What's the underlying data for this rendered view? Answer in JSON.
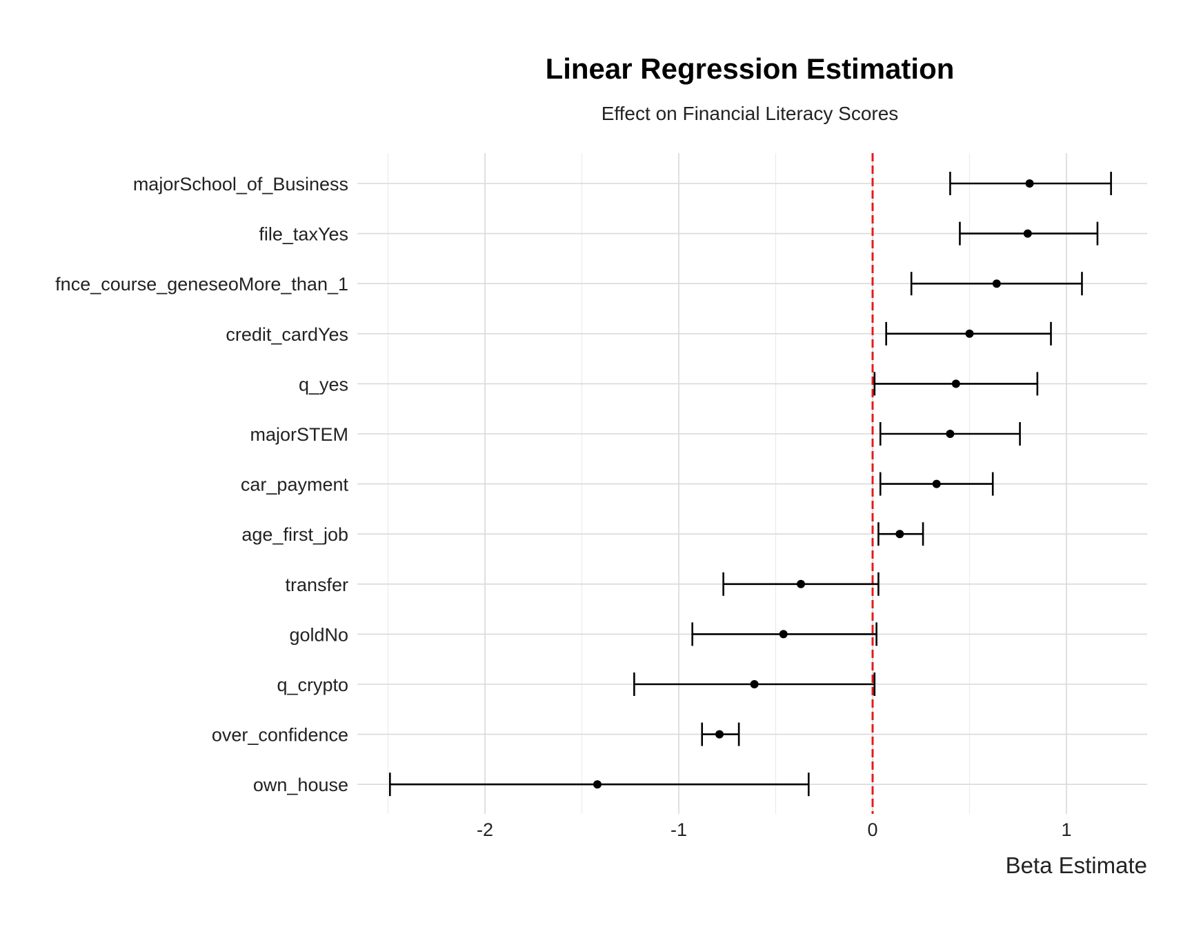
{
  "chart_data": {
    "type": "scatter",
    "subtype": "coefficient-plot",
    "title": "Linear Regression Estimation",
    "subtitle": "Effect on Financial Literacy Scores",
    "xlabel": "Beta Estimate",
    "ylabel": "",
    "xlim": [
      -2.6,
      1.42
    ],
    "xticks": [
      -2,
      -1,
      0,
      1
    ],
    "xtick_labels": [
      "-2",
      "-1",
      "0",
      "1"
    ],
    "reference_line": {
      "x": 0,
      "color": "#e41a1c",
      "style": "dashed"
    },
    "grid": true,
    "legend": "none",
    "point_color": "#000000",
    "terms": [
      {
        "label": "majorSchool_of_Business",
        "estimate": 0.81,
        "low": 0.4,
        "high": 1.23
      },
      {
        "label": "file_taxYes",
        "estimate": 0.8,
        "low": 0.45,
        "high": 1.16
      },
      {
        "label": "fnce_course_geneseoMore_than_1",
        "estimate": 0.64,
        "low": 0.2,
        "high": 1.08
      },
      {
        "label": "credit_cardYes",
        "estimate": 0.5,
        "low": 0.07,
        "high": 0.92
      },
      {
        "label": "q_yes",
        "estimate": 0.43,
        "low": 0.01,
        "high": 0.85
      },
      {
        "label": "majorSTEM",
        "estimate": 0.4,
        "low": 0.04,
        "high": 0.76
      },
      {
        "label": "car_payment",
        "estimate": 0.33,
        "low": 0.04,
        "high": 0.62
      },
      {
        "label": "age_first_job",
        "estimate": 0.14,
        "low": 0.03,
        "high": 0.26
      },
      {
        "label": "transfer",
        "estimate": -0.37,
        "low": -0.77,
        "high": 0.03
      },
      {
        "label": "goldNo",
        "estimate": -0.46,
        "low": -0.93,
        "high": 0.02
      },
      {
        "label": "q_crypto",
        "estimate": -0.61,
        "low": -1.23,
        "high": 0.01
      },
      {
        "label": "over_confidence",
        "estimate": -0.79,
        "low": -0.88,
        "high": -0.69
      },
      {
        "label": "own_house",
        "estimate": -1.42,
        "low": -2.49,
        "high": -0.33
      }
    ]
  }
}
